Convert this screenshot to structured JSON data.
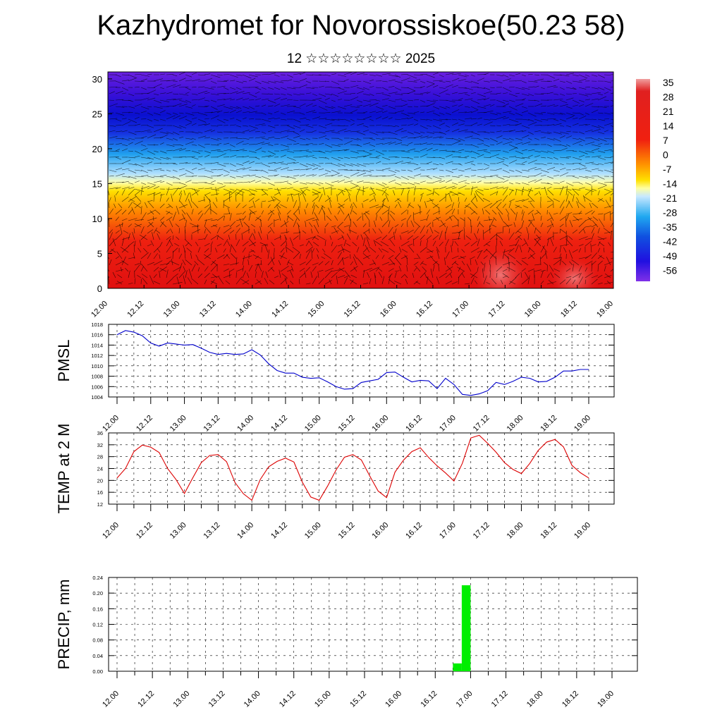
{
  "title": "Kazhydromet for Novorossiskoe(50.23 58)",
  "subtitle": "12 ☆☆☆☆☆☆☆☆ 2025",
  "time_ticks": [
    "12.00",
    "12.12",
    "13.00",
    "13.12",
    "14.00",
    "14.12",
    "15.00",
    "15.12",
    "16.00",
    "16.12",
    "17.00",
    "17.12",
    "18.00",
    "18.12",
    "19.00"
  ],
  "colors": {
    "pmsl_line": "#0000cc",
    "temp_line": "#dd0000",
    "precip_bar": "#00ee00"
  },
  "chart_data": [
    {
      "type": "heatmap",
      "title": "",
      "xlabel": "",
      "ylabel": "",
      "x_ticks": [
        "12.00",
        "12.12",
        "13.00",
        "13.12",
        "14.00",
        "14.12",
        "15.00",
        "15.12",
        "16.00",
        "16.12",
        "17.00",
        "17.12",
        "18.00",
        "18.12",
        "19.00"
      ],
      "y_ticks": [
        0,
        5,
        10,
        15,
        20,
        25,
        30
      ],
      "ylim": [
        0,
        31
      ],
      "colorbar_labels": [
        "35",
        "28",
        "21",
        "14",
        "7",
        "0",
        "-7",
        "-14",
        "-21",
        "-28",
        "-35",
        "-42",
        "-49",
        "-56"
      ],
      "colorbar_range": [
        -63,
        38
      ],
      "overlay": "wind vectors"
    },
    {
      "type": "line",
      "ylabel": "PMSL",
      "x": [
        "12.00",
        "12.03",
        "12.06",
        "12.09",
        "12.12",
        "12.15",
        "12.18",
        "12.21",
        "13.00",
        "13.03",
        "13.06",
        "13.09",
        "13.12",
        "13.15",
        "13.18",
        "13.21",
        "14.00",
        "14.03",
        "14.06",
        "14.09",
        "14.12",
        "14.15",
        "14.18",
        "14.21",
        "15.00",
        "15.03",
        "15.06",
        "15.09",
        "15.12",
        "15.15",
        "15.18",
        "15.21",
        "16.00",
        "16.03",
        "16.06",
        "16.09",
        "16.12",
        "16.15",
        "16.18",
        "16.21",
        "17.00",
        "17.03",
        "17.06",
        "17.09",
        "17.12",
        "17.15",
        "17.18",
        "17.21",
        "18.00",
        "18.03",
        "18.06",
        "18.09",
        "18.12",
        "18.15",
        "18.18",
        "18.21",
        "19.00"
      ],
      "series": [
        {
          "values": [
            1016.0,
            1016.8,
            1016.5,
            1015.8,
            1014.4,
            1013.8,
            1014.4,
            1014.2,
            1014.0,
            1014.1,
            1013.4,
            1012.6,
            1012.2,
            1012.4,
            1012.2,
            1012.3,
            1013.1,
            1012.1,
            1010.4,
            1009.1,
            1008.6,
            1008.6,
            1007.8,
            1007.6,
            1007.7,
            1006.9,
            1006.0,
            1005.5,
            1005.6,
            1006.8,
            1007.1,
            1007.4,
            1008.7,
            1008.8,
            1007.8,
            1006.9,
            1007.2,
            1007.1,
            1005.6,
            1007.6,
            1006.4,
            1004.5,
            1004.3,
            1004.6,
            1005.2,
            1006.8,
            1006.4,
            1007.0,
            1007.8,
            1007.6,
            1006.9,
            1007.0,
            1007.8,
            1009.0,
            1009.0,
            1009.3,
            1009.3
          ]
        }
      ],
      "ylim": [
        1004,
        1018
      ],
      "y_ticks": [
        "1004",
        "1006",
        "1008",
        "1010",
        "1012",
        "1014",
        "1016",
        "1018"
      ],
      "x_ticks": [
        "12.00",
        "12.12",
        "13.00",
        "13.12",
        "14.00",
        "14.12",
        "15.00",
        "15.12",
        "16.00",
        "16.12",
        "17.00",
        "17.12",
        "18.00",
        "18.12",
        "19.00"
      ],
      "grid": true
    },
    {
      "type": "line",
      "ylabel": "TEMP at 2 M",
      "x": [
        "12.00",
        "12.03",
        "12.06",
        "12.09",
        "12.12",
        "12.15",
        "12.18",
        "12.21",
        "13.00",
        "13.03",
        "13.06",
        "13.09",
        "13.12",
        "13.15",
        "13.18",
        "13.21",
        "14.00",
        "14.03",
        "14.06",
        "14.09",
        "14.12",
        "14.15",
        "14.18",
        "14.21",
        "15.00",
        "15.03",
        "15.06",
        "15.09",
        "15.12",
        "15.15",
        "15.18",
        "15.21",
        "16.00",
        "16.03",
        "16.06",
        "16.09",
        "16.12",
        "16.15",
        "16.18",
        "16.21",
        "17.00",
        "17.03",
        "17.06",
        "17.09",
        "17.12",
        "17.15",
        "17.18",
        "17.21",
        "18.00",
        "18.03",
        "18.06",
        "18.09",
        "18.12",
        "18.15",
        "18.18",
        "18.21",
        "19.00"
      ],
      "series": [
        {
          "values": [
            20.8,
            24.0,
            29.7,
            31.9,
            31.2,
            29.4,
            24.0,
            20.3,
            15.6,
            20.9,
            26.0,
            28.4,
            28.7,
            26.3,
            19.3,
            15.5,
            13.3,
            20.3,
            24.6,
            26.4,
            27.5,
            26.2,
            19.4,
            14.4,
            13.3,
            18.1,
            23.5,
            27.8,
            28.7,
            26.9,
            21.5,
            16.4,
            14.2,
            22.8,
            26.8,
            29.7,
            31.0,
            27.7,
            24.9,
            22.5,
            19.8,
            25.8,
            34.3,
            35.2,
            32.5,
            29.5,
            26.0,
            23.7,
            22.3,
            25.7,
            30.1,
            32.9,
            33.8,
            31.3,
            25.1,
            22.6,
            20.8
          ]
        }
      ],
      "ylim": [
        12,
        36
      ],
      "y_ticks": [
        "12",
        "16",
        "20",
        "24",
        "28",
        "32",
        "36"
      ],
      "x_ticks": [
        "12.00",
        "12.12",
        "13.00",
        "13.12",
        "14.00",
        "14.12",
        "15.00",
        "15.12",
        "16.00",
        "16.12",
        "17.00",
        "17.12",
        "18.00",
        "18.12",
        "19.00"
      ],
      "grid": true
    },
    {
      "type": "bar",
      "ylabel": "PRECIP, mm",
      "bars": [
        {
          "x": "16.21",
          "value": 0.02
        },
        {
          "x": "17.00",
          "value": 0.22
        }
      ],
      "ylim": [
        0,
        0.24
      ],
      "y_ticks": [
        "0.00",
        "0.04",
        "0.08",
        "0.12",
        "0.16",
        "0.20",
        "0.24"
      ],
      "x_ticks": [
        "12.00",
        "12.12",
        "13.00",
        "13.12",
        "14.00",
        "14.12",
        "15.00",
        "15.12",
        "16.00",
        "16.12",
        "17.00",
        "17.12",
        "18.00",
        "18.12",
        "19.00"
      ],
      "grid": true
    }
  ]
}
